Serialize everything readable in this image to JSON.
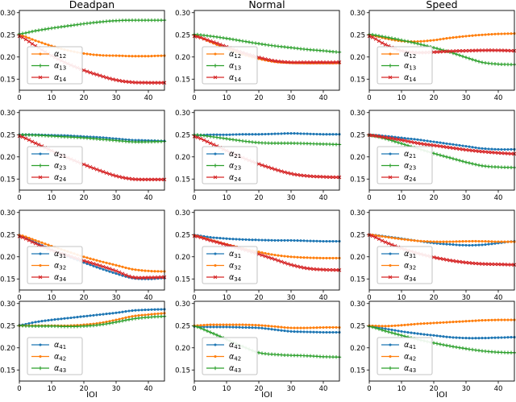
{
  "figure": {
    "column_titles": [
      "Deadpan",
      "Normal",
      "Speed"
    ],
    "xlabel": "IOI",
    "colors": {
      "blue": "#1f77b4",
      "orange": "#ff7f0e",
      "green": "#2ca02c",
      "red": "#d62728"
    },
    "axis": {
      "xticks": [
        0,
        10,
        20,
        30,
        40
      ],
      "ytick_labels": [
        "0.15",
        "0.20",
        "0.25",
        "0.30"
      ],
      "xlim": [
        0,
        45
      ],
      "ylim": [
        0.125,
        0.305
      ],
      "grid": false
    },
    "legend_location": "lower left"
  },
  "chart_data": [
    {
      "type": "line",
      "panel": "deadpan-row1",
      "column_title": "Deadpan",
      "x": [
        0,
        5,
        10,
        15,
        20,
        25,
        30,
        35,
        40,
        45
      ],
      "series": [
        {
          "name": "α12",
          "label_base": "α",
          "label_sub": "12",
          "color": "orange",
          "marker": "dot",
          "values": [
            0.25,
            0.237,
            0.225,
            0.215,
            0.208,
            0.204,
            0.203,
            0.202,
            0.202,
            0.203
          ]
        },
        {
          "name": "α13",
          "label_base": "α",
          "label_sub": "13",
          "color": "green",
          "marker": "plus",
          "values": [
            0.252,
            0.259,
            0.265,
            0.27,
            0.275,
            0.279,
            0.282,
            0.283,
            0.283,
            0.283
          ]
        },
        {
          "name": "α14",
          "label_base": "α",
          "label_sub": "14",
          "color": "red",
          "marker": "x",
          "values": [
            0.247,
            0.225,
            0.203,
            0.185,
            0.17,
            0.158,
            0.148,
            0.143,
            0.142,
            0.142
          ]
        }
      ]
    },
    {
      "type": "line",
      "panel": "normal-row1",
      "column_title": "Normal",
      "x": [
        0,
        5,
        10,
        15,
        20,
        25,
        30,
        35,
        40,
        45
      ],
      "series": [
        {
          "name": "α12",
          "label_base": "α",
          "label_sub": "12",
          "color": "orange",
          "marker": "dot",
          "values": [
            0.249,
            0.234,
            0.219,
            0.206,
            0.196,
            0.189,
            0.187,
            0.186,
            0.186,
            0.186
          ]
        },
        {
          "name": "α13",
          "label_base": "α",
          "label_sub": "13",
          "color": "green",
          "marker": "plus",
          "values": [
            0.251,
            0.247,
            0.242,
            0.236,
            0.23,
            0.225,
            0.221,
            0.217,
            0.214,
            0.211
          ]
        },
        {
          "name": "α14",
          "label_base": "α",
          "label_sub": "14",
          "color": "red",
          "marker": "x",
          "values": [
            0.247,
            0.236,
            0.223,
            0.21,
            0.199,
            0.191,
            0.188,
            0.188,
            0.188,
            0.188
          ]
        }
      ]
    },
    {
      "type": "line",
      "panel": "speed-row1",
      "column_title": "Speed",
      "x": [
        0,
        5,
        10,
        15,
        20,
        25,
        30,
        35,
        40,
        45
      ],
      "series": [
        {
          "name": "α12",
          "label_base": "α",
          "label_sub": "12",
          "color": "orange",
          "marker": "dot",
          "values": [
            0.25,
            0.242,
            0.236,
            0.235,
            0.238,
            0.243,
            0.247,
            0.25,
            0.252,
            0.253
          ]
        },
        {
          "name": "α13",
          "label_base": "α",
          "label_sub": "13",
          "color": "green",
          "marker": "plus",
          "values": [
            0.251,
            0.245,
            0.238,
            0.23,
            0.221,
            0.211,
            0.199,
            0.188,
            0.184,
            0.183
          ]
        },
        {
          "name": "α14",
          "label_base": "α",
          "label_sub": "14",
          "color": "red",
          "marker": "x",
          "values": [
            0.247,
            0.228,
            0.214,
            0.21,
            0.211,
            0.213,
            0.214,
            0.215,
            0.215,
            0.214
          ]
        }
      ]
    },
    {
      "type": "line",
      "panel": "deadpan-row2",
      "x": [
        0,
        5,
        10,
        15,
        20,
        25,
        30,
        35,
        40,
        45
      ],
      "series": [
        {
          "name": "α21",
          "label_base": "α",
          "label_sub": "21",
          "color": "blue",
          "marker": "dot",
          "values": [
            0.25,
            0.25,
            0.249,
            0.248,
            0.246,
            0.244,
            0.241,
            0.238,
            0.237,
            0.236
          ]
        },
        {
          "name": "α23",
          "label_base": "α",
          "label_sub": "23",
          "color": "green",
          "marker": "plus",
          "values": [
            0.25,
            0.249,
            0.247,
            0.245,
            0.243,
            0.24,
            0.237,
            0.234,
            0.234,
            0.235
          ]
        },
        {
          "name": "α24",
          "label_base": "α",
          "label_sub": "24",
          "color": "red",
          "marker": "x",
          "values": [
            0.247,
            0.231,
            0.214,
            0.198,
            0.183,
            0.169,
            0.157,
            0.15,
            0.149,
            0.149
          ]
        }
      ]
    },
    {
      "type": "line",
      "panel": "normal-row2",
      "x": [
        0,
        5,
        10,
        15,
        20,
        25,
        30,
        35,
        40,
        45
      ],
      "series": [
        {
          "name": "α21",
          "label_base": "α",
          "label_sub": "21",
          "color": "blue",
          "marker": "dot",
          "values": [
            0.249,
            0.25,
            0.25,
            0.251,
            0.251,
            0.252,
            0.253,
            0.252,
            0.251,
            0.251
          ]
        },
        {
          "name": "α23",
          "label_base": "α",
          "label_sub": "23",
          "color": "green",
          "marker": "plus",
          "values": [
            0.25,
            0.246,
            0.241,
            0.236,
            0.232,
            0.231,
            0.231,
            0.23,
            0.229,
            0.228
          ]
        },
        {
          "name": "α24",
          "label_base": "α",
          "label_sub": "24",
          "color": "red",
          "marker": "x",
          "values": [
            0.246,
            0.231,
            0.214,
            0.198,
            0.184,
            0.172,
            0.162,
            0.157,
            0.155,
            0.154
          ]
        }
      ]
    },
    {
      "type": "line",
      "panel": "speed-row2",
      "x": [
        0,
        5,
        10,
        15,
        20,
        25,
        30,
        35,
        40,
        45
      ],
      "series": [
        {
          "name": "α21",
          "label_base": "α",
          "label_sub": "21",
          "color": "blue",
          "marker": "dot",
          "values": [
            0.25,
            0.247,
            0.243,
            0.239,
            0.234,
            0.229,
            0.224,
            0.219,
            0.217,
            0.217
          ]
        },
        {
          "name": "α23",
          "label_base": "α",
          "label_sub": "23",
          "color": "green",
          "marker": "plus",
          "values": [
            0.249,
            0.241,
            0.23,
            0.219,
            0.208,
            0.198,
            0.188,
            0.18,
            0.177,
            0.176
          ]
        },
        {
          "name": "α24",
          "label_base": "α",
          "label_sub": "24",
          "color": "red",
          "marker": "x",
          "values": [
            0.249,
            0.244,
            0.238,
            0.231,
            0.226,
            0.221,
            0.216,
            0.212,
            0.209,
            0.207
          ]
        }
      ]
    },
    {
      "type": "line",
      "panel": "deadpan-row3",
      "x": [
        0,
        5,
        10,
        15,
        20,
        25,
        30,
        35,
        40,
        45
      ],
      "series": [
        {
          "name": "α31",
          "label_base": "α",
          "label_sub": "31",
          "color": "blue",
          "marker": "dot",
          "values": [
            0.248,
            0.232,
            0.216,
            0.201,
            0.187,
            0.174,
            0.162,
            0.152,
            0.15,
            0.152
          ]
        },
        {
          "name": "α32",
          "label_base": "α",
          "label_sub": "32",
          "color": "orange",
          "marker": "dot",
          "values": [
            0.249,
            0.237,
            0.224,
            0.212,
            0.2,
            0.19,
            0.181,
            0.172,
            0.168,
            0.167
          ]
        },
        {
          "name": "α34",
          "label_base": "α",
          "label_sub": "34",
          "color": "red",
          "marker": "x",
          "values": [
            0.246,
            0.23,
            0.215,
            0.203,
            0.191,
            0.18,
            0.168,
            0.154,
            0.153,
            0.154
          ]
        }
      ]
    },
    {
      "type": "line",
      "panel": "normal-row3",
      "x": [
        0,
        5,
        10,
        15,
        20,
        25,
        30,
        35,
        40,
        45
      ],
      "series": [
        {
          "name": "α31",
          "label_base": "α",
          "label_sub": "31",
          "color": "blue",
          "marker": "dot",
          "values": [
            0.249,
            0.244,
            0.241,
            0.239,
            0.238,
            0.237,
            0.237,
            0.236,
            0.235,
            0.235
          ]
        },
        {
          "name": "α32",
          "label_base": "α",
          "label_sub": "32",
          "color": "orange",
          "marker": "dot",
          "values": [
            0.248,
            0.238,
            0.228,
            0.219,
            0.211,
            0.204,
            0.2,
            0.198,
            0.197,
            0.197
          ]
        },
        {
          "name": "α34",
          "label_base": "α",
          "label_sub": "34",
          "color": "red",
          "marker": "x",
          "values": [
            0.247,
            0.237,
            0.227,
            0.217,
            0.206,
            0.194,
            0.182,
            0.174,
            0.171,
            0.17
          ]
        }
      ]
    },
    {
      "type": "line",
      "panel": "speed-row3",
      "x": [
        0,
        5,
        10,
        15,
        20,
        25,
        30,
        35,
        40,
        45
      ],
      "series": [
        {
          "name": "α31",
          "label_base": "α",
          "label_sub": "31",
          "color": "blue",
          "marker": "dot",
          "values": [
            0.25,
            0.246,
            0.241,
            0.236,
            0.231,
            0.228,
            0.226,
            0.227,
            0.231,
            0.235
          ]
        },
        {
          "name": "α32",
          "label_base": "α",
          "label_sub": "32",
          "color": "orange",
          "marker": "dot",
          "values": [
            0.25,
            0.245,
            0.24,
            0.236,
            0.234,
            0.234,
            0.235,
            0.235,
            0.234,
            0.234
          ]
        },
        {
          "name": "α34",
          "label_base": "α",
          "label_sub": "34",
          "color": "red",
          "marker": "x",
          "values": [
            0.249,
            0.233,
            0.219,
            0.208,
            0.199,
            0.192,
            0.187,
            0.184,
            0.183,
            0.182
          ]
        }
      ]
    },
    {
      "type": "line",
      "panel": "deadpan-row4",
      "xlabel": "IOI",
      "x": [
        0,
        5,
        10,
        15,
        20,
        25,
        30,
        35,
        40,
        45
      ],
      "series": [
        {
          "name": "α41",
          "label_base": "α",
          "label_sub": "41",
          "color": "blue",
          "marker": "dot",
          "values": [
            0.251,
            0.258,
            0.263,
            0.267,
            0.271,
            0.275,
            0.279,
            0.284,
            0.286,
            0.287
          ]
        },
        {
          "name": "α42",
          "label_base": "α",
          "label_sub": "42",
          "color": "orange",
          "marker": "dot",
          "values": [
            0.25,
            0.25,
            0.25,
            0.25,
            0.252,
            0.256,
            0.263,
            0.271,
            0.275,
            0.278
          ]
        },
        {
          "name": "α43",
          "label_base": "α",
          "label_sub": "43",
          "color": "green",
          "marker": "plus",
          "values": [
            0.25,
            0.249,
            0.249,
            0.248,
            0.249,
            0.252,
            0.258,
            0.265,
            0.269,
            0.271
          ]
        }
      ]
    },
    {
      "type": "line",
      "panel": "normal-row4",
      "xlabel": "IOI",
      "x": [
        0,
        5,
        10,
        15,
        20,
        25,
        30,
        35,
        40,
        45
      ],
      "series": [
        {
          "name": "α41",
          "label_base": "α",
          "label_sub": "41",
          "color": "blue",
          "marker": "dot",
          "values": [
            0.248,
            0.247,
            0.247,
            0.246,
            0.245,
            0.241,
            0.237,
            0.236,
            0.235,
            0.235
          ]
        },
        {
          "name": "α42",
          "label_base": "α",
          "label_sub": "42",
          "color": "orange",
          "marker": "dot",
          "values": [
            0.25,
            0.252,
            0.252,
            0.252,
            0.251,
            0.248,
            0.245,
            0.245,
            0.246,
            0.246
          ]
        },
        {
          "name": "α43",
          "label_base": "α",
          "label_sub": "43",
          "color": "green",
          "marker": "plus",
          "values": [
            0.249,
            0.235,
            0.219,
            0.203,
            0.189,
            0.185,
            0.183,
            0.182,
            0.18,
            0.179
          ]
        }
      ]
    },
    {
      "type": "line",
      "panel": "speed-row4",
      "xlabel": "IOI",
      "x": [
        0,
        5,
        10,
        15,
        20,
        25,
        30,
        35,
        40,
        45
      ],
      "series": [
        {
          "name": "α41",
          "label_base": "α",
          "label_sub": "41",
          "color": "blue",
          "marker": "dot",
          "values": [
            0.249,
            0.243,
            0.237,
            0.232,
            0.228,
            0.224,
            0.222,
            0.222,
            0.223,
            0.224
          ]
        },
        {
          "name": "α42",
          "label_base": "α",
          "label_sub": "42",
          "color": "orange",
          "marker": "dot",
          "values": [
            0.25,
            0.249,
            0.251,
            0.254,
            0.256,
            0.258,
            0.26,
            0.262,
            0.263,
            0.263
          ]
        },
        {
          "name": "α43",
          "label_base": "α",
          "label_sub": "43",
          "color": "green",
          "marker": "plus",
          "values": [
            0.248,
            0.238,
            0.228,
            0.219,
            0.211,
            0.204,
            0.198,
            0.193,
            0.19,
            0.189
          ]
        }
      ]
    }
  ]
}
